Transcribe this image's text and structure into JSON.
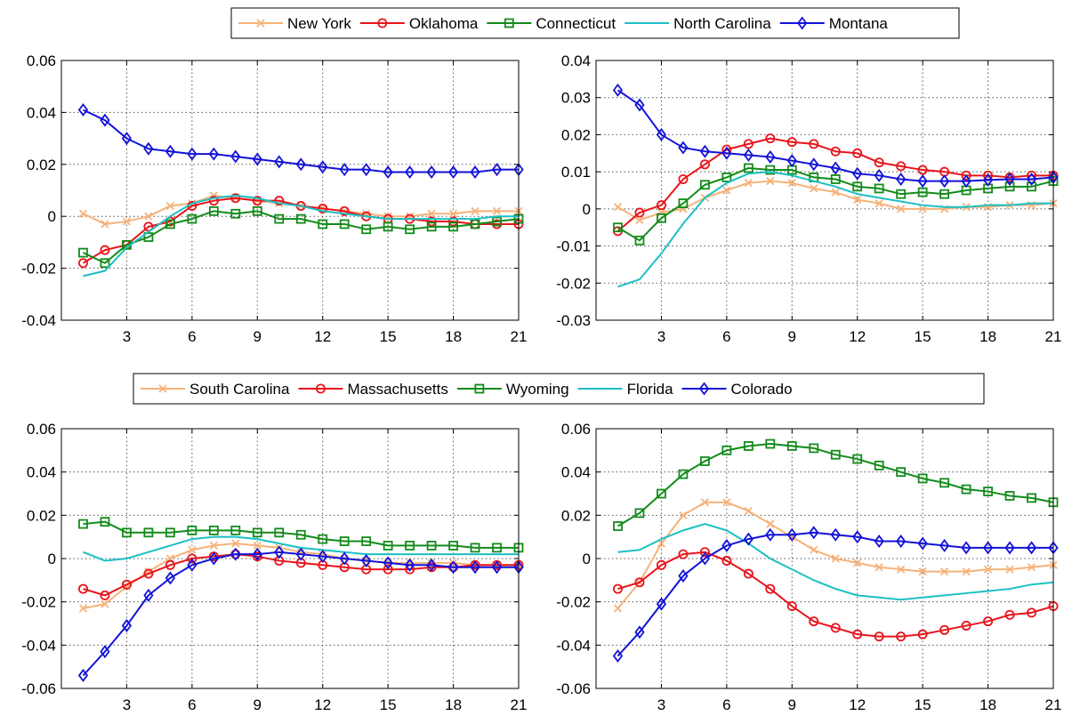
{
  "legends": [
    {
      "entries": [
        {
          "name": "New York",
          "color": "#F5B27A",
          "marker": "x"
        },
        {
          "name": "Oklahoma",
          "color": "#E8141B",
          "marker": "o"
        },
        {
          "name": "Connecticut",
          "color": "#128B1A",
          "marker": "s"
        },
        {
          "name": "North Carolina",
          "color": "#1BBFC4",
          "marker": "none"
        },
        {
          "name": "Montana",
          "color": "#1212D8",
          "marker": "d"
        }
      ]
    },
    {
      "entries": [
        {
          "name": "South Carolina",
          "color": "#F5B27A",
          "marker": "x"
        },
        {
          "name": "Massachusetts",
          "color": "#E8141B",
          "marker": "o"
        },
        {
          "name": "Wyoming",
          "color": "#128B1A",
          "marker": "s"
        },
        {
          "name": "Florida",
          "color": "#1BBFC4",
          "marker": "none"
        },
        {
          "name": "Colorado",
          "color": "#1212D8",
          "marker": "d"
        }
      ]
    }
  ],
  "chart_data": [
    {
      "type": "line",
      "grid": true,
      "x": [
        1,
        2,
        3,
        4,
        5,
        6,
        7,
        8,
        9,
        10,
        11,
        12,
        13,
        14,
        15,
        16,
        17,
        18,
        19,
        20,
        21
      ],
      "xlim": [
        0,
        21
      ],
      "xticks": [
        "3",
        "6",
        "9",
        "12",
        "15",
        "18",
        "21"
      ],
      "ylim": [
        -0.04,
        0.06
      ],
      "yticks": [
        "-0.04",
        "-0.02",
        "0",
        "0.02",
        "0.04",
        "0.06"
      ],
      "series": [
        {
          "name": "New York",
          "values": [
            0.001,
            -0.003,
            -0.002,
            0.0,
            0.004,
            0.005,
            0.008,
            0.007,
            0.006,
            0.005,
            0.004,
            0.003,
            0.002,
            0.001,
            0.0,
            0.0,
            0.001,
            0.001,
            0.002,
            0.002,
            0.002
          ]
        },
        {
          "name": "Oklahoma",
          "values": [
            -0.018,
            -0.013,
            -0.011,
            -0.004,
            -0.002,
            0.004,
            0.006,
            0.007,
            0.006,
            0.006,
            0.004,
            0.003,
            0.002,
            0.0,
            -0.001,
            -0.001,
            -0.002,
            -0.002,
            -0.003,
            -0.003,
            -0.003
          ]
        },
        {
          "name": "Connecticut",
          "values": [
            -0.014,
            -0.018,
            -0.011,
            -0.008,
            -0.003,
            -0.001,
            0.002,
            0.001,
            0.002,
            -0.001,
            -0.001,
            -0.003,
            -0.003,
            -0.005,
            -0.004,
            -0.005,
            -0.004,
            -0.004,
            -0.003,
            -0.002,
            -0.001
          ]
        },
        {
          "name": "North Carolina",
          "values": [
            -0.023,
            -0.021,
            -0.012,
            -0.006,
            0.0,
            0.005,
            0.007,
            0.008,
            0.007,
            0.005,
            0.004,
            0.002,
            0.001,
            0.0,
            -0.001,
            -0.001,
            -0.001,
            -0.001,
            -0.001,
            0.0,
            0.0
          ]
        },
        {
          "name": "Montana",
          "values": [
            0.041,
            0.037,
            0.03,
            0.026,
            0.025,
            0.024,
            0.024,
            0.023,
            0.022,
            0.021,
            0.02,
            0.019,
            0.018,
            0.018,
            0.017,
            0.017,
            0.017,
            0.017,
            0.017,
            0.018,
            0.018
          ]
        }
      ]
    },
    {
      "type": "line",
      "grid": true,
      "x": [
        1,
        2,
        3,
        4,
        5,
        6,
        7,
        8,
        9,
        10,
        11,
        12,
        13,
        14,
        15,
        16,
        17,
        18,
        19,
        20,
        21
      ],
      "xlim": [
        0,
        21
      ],
      "xticks": [
        "3",
        "6",
        "9",
        "12",
        "15",
        "18",
        "21"
      ],
      "ylim": [
        -0.03,
        0.04
      ],
      "yticks": [
        "-0.03",
        "-0.02",
        "-0.01",
        "0",
        "0.01",
        "0.02",
        "0.03",
        "0.04"
      ],
      "series": [
        {
          "name": "New York",
          "values": [
            0.0005,
            -0.003,
            -0.001,
            0.0,
            0.003,
            0.005,
            0.007,
            0.0075,
            0.007,
            0.0055,
            0.0045,
            0.0025,
            0.0015,
            0.0,
            0.0,
            0.0,
            0.0005,
            0.0005,
            0.001,
            0.001,
            0.0015
          ]
        },
        {
          "name": "Oklahoma",
          "values": [
            -0.006,
            -0.001,
            0.001,
            0.008,
            0.012,
            0.016,
            0.0175,
            0.019,
            0.018,
            0.0175,
            0.0155,
            0.015,
            0.0125,
            0.0115,
            0.0105,
            0.01,
            0.009,
            0.009,
            0.0085,
            0.009,
            0.009
          ]
        },
        {
          "name": "Connecticut",
          "values": [
            -0.005,
            -0.0085,
            -0.0025,
            0.0015,
            0.0065,
            0.0085,
            0.011,
            0.0105,
            0.0105,
            0.0085,
            0.008,
            0.006,
            0.0055,
            0.004,
            0.0045,
            0.004,
            0.005,
            0.0055,
            0.006,
            0.006,
            0.0075
          ]
        },
        {
          "name": "North Carolina",
          "values": [
            -0.021,
            -0.019,
            -0.012,
            -0.004,
            0.003,
            0.007,
            0.0095,
            0.01,
            0.009,
            0.0075,
            0.006,
            0.004,
            0.003,
            0.002,
            0.001,
            0.0005,
            0.0005,
            0.001,
            0.001,
            0.0015,
            0.0015
          ]
        },
        {
          "name": "Montana",
          "values": [
            0.032,
            0.028,
            0.02,
            0.0165,
            0.0155,
            0.015,
            0.0145,
            0.014,
            0.013,
            0.012,
            0.011,
            0.0095,
            0.009,
            0.008,
            0.0075,
            0.0075,
            0.0075,
            0.0078,
            0.008,
            0.008,
            0.0085
          ]
        }
      ]
    },
    {
      "type": "line",
      "grid": true,
      "x": [
        1,
        2,
        3,
        4,
        5,
        6,
        7,
        8,
        9,
        10,
        11,
        12,
        13,
        14,
        15,
        16,
        17,
        18,
        19,
        20,
        21
      ],
      "xlim": [
        0,
        21
      ],
      "xticks": [
        "3",
        "6",
        "9",
        "12",
        "15",
        "18",
        "21"
      ],
      "ylim": [
        -0.06,
        0.06
      ],
      "yticks": [
        "-0.06",
        "-0.04",
        "-0.02",
        "0",
        "0.02",
        "0.04",
        "0.06"
      ],
      "series": [
        {
          "name": "South Carolina",
          "values": [
            -0.023,
            -0.021,
            -0.013,
            -0.006,
            0.0,
            0.004,
            0.006,
            0.007,
            0.006,
            0.005,
            0.003,
            0.002,
            0.0,
            -0.001,
            -0.002,
            -0.002,
            -0.002,
            -0.002,
            -0.003,
            -0.003,
            -0.003
          ]
        },
        {
          "name": "Massachusetts",
          "values": [
            -0.014,
            -0.017,
            -0.012,
            -0.007,
            -0.003,
            0.0,
            0.001,
            0.002,
            0.001,
            -0.001,
            -0.002,
            -0.003,
            -0.004,
            -0.005,
            -0.005,
            -0.005,
            -0.004,
            -0.004,
            -0.003,
            -0.003,
            -0.003
          ]
        },
        {
          "name": "Wyoming",
          "values": [
            0.016,
            0.017,
            0.012,
            0.012,
            0.012,
            0.013,
            0.013,
            0.013,
            0.012,
            0.012,
            0.011,
            0.009,
            0.008,
            0.008,
            0.006,
            0.006,
            0.006,
            0.006,
            0.005,
            0.005,
            0.005
          ]
        },
        {
          "name": "Florida",
          "values": [
            0.003,
            -0.001,
            0.0,
            0.003,
            0.006,
            0.009,
            0.01,
            0.01,
            0.009,
            0.007,
            0.005,
            0.004,
            0.003,
            0.002,
            0.002,
            0.002,
            0.002,
            0.002,
            0.002,
            0.002,
            0.002
          ]
        },
        {
          "name": "Colorado",
          "values": [
            -0.054,
            -0.043,
            -0.031,
            -0.017,
            -0.009,
            -0.003,
            0.0,
            0.002,
            0.002,
            0.003,
            0.002,
            0.001,
            0.0,
            -0.001,
            -0.002,
            -0.003,
            -0.003,
            -0.004,
            -0.004,
            -0.004,
            -0.004
          ]
        }
      ]
    },
    {
      "type": "line",
      "grid": true,
      "x": [
        1,
        2,
        3,
        4,
        5,
        6,
        7,
        8,
        9,
        10,
        11,
        12,
        13,
        14,
        15,
        16,
        17,
        18,
        19,
        20,
        21
      ],
      "xlim": [
        0,
        21
      ],
      "xticks": [
        "3",
        "6",
        "9",
        "12",
        "15",
        "18",
        "21"
      ],
      "ylim": [
        -0.06,
        0.06
      ],
      "yticks": [
        "-0.06",
        "-0.04",
        "-0.02",
        "0",
        "0.02",
        "0.04",
        "0.06"
      ],
      "series": [
        {
          "name": "South Carolina",
          "values": [
            -0.023,
            -0.011,
            0.007,
            0.02,
            0.026,
            0.026,
            0.022,
            0.016,
            0.01,
            0.004,
            0.0,
            -0.002,
            -0.004,
            -0.005,
            -0.006,
            -0.006,
            -0.006,
            -0.005,
            -0.005,
            -0.004,
            -0.003
          ]
        },
        {
          "name": "Massachusetts",
          "values": [
            -0.014,
            -0.011,
            -0.003,
            0.002,
            0.003,
            -0.001,
            -0.007,
            -0.014,
            -0.022,
            -0.029,
            -0.032,
            -0.035,
            -0.036,
            -0.036,
            -0.035,
            -0.033,
            -0.031,
            -0.029,
            -0.026,
            -0.025,
            -0.022
          ]
        },
        {
          "name": "Wyoming",
          "values": [
            0.015,
            0.021,
            0.03,
            0.039,
            0.045,
            0.05,
            0.052,
            0.053,
            0.052,
            0.051,
            0.048,
            0.046,
            0.043,
            0.04,
            0.037,
            0.035,
            0.032,
            0.031,
            0.029,
            0.028,
            0.026
          ]
        },
        {
          "name": "Florida",
          "values": [
            0.003,
            0.004,
            0.009,
            0.013,
            0.016,
            0.013,
            0.007,
            0.0,
            -0.005,
            -0.01,
            -0.014,
            -0.017,
            -0.018,
            -0.019,
            -0.018,
            -0.017,
            -0.016,
            -0.015,
            -0.014,
            -0.012,
            -0.011
          ]
        },
        {
          "name": "Colorado",
          "values": [
            -0.045,
            -0.034,
            -0.021,
            -0.008,
            0.0,
            0.006,
            0.009,
            0.011,
            0.011,
            0.012,
            0.011,
            0.01,
            0.008,
            0.008,
            0.007,
            0.006,
            0.005,
            0.005,
            0.005,
            0.005,
            0.005
          ]
        }
      ]
    }
  ]
}
